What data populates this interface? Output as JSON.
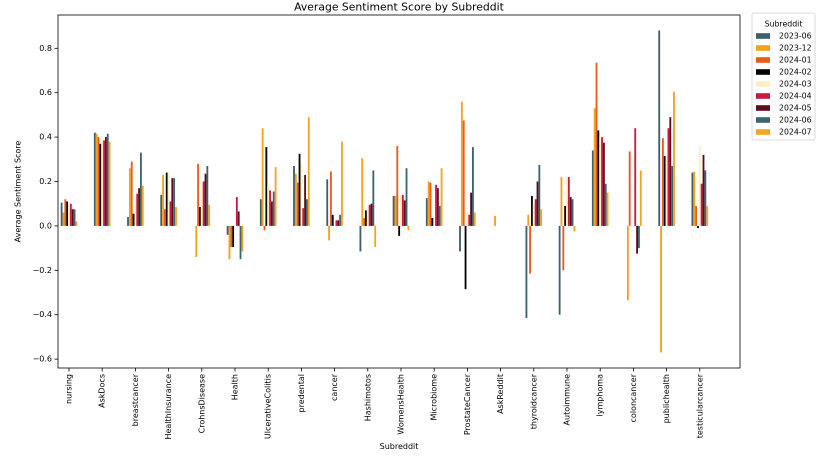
{
  "chart_data": {
    "type": "bar",
    "title": "Average Sentiment Score by Subreddit",
    "xlabel": "Subreddit",
    "ylabel": "Average Sentiment Score",
    "categories": [
      "nursing",
      "AskDocs",
      "breastcancer",
      "HealthInsurance",
      "CrohnsDisease",
      "Health",
      "UlcerativeColitis",
      "predental",
      "cancer",
      "Hashimotos",
      "WomensHealth",
      "Microbiome",
      "ProstateCancer",
      "AskReddit",
      "thyroidcancer",
      "Autoimmune",
      "lymphoma",
      "coloncancer",
      "publichealth",
      "testicularcancer"
    ],
    "series": [
      {
        "name": "2023-06",
        "color": "#3d5f6e",
        "values": [
          0.105,
          0.42,
          0.04,
          0.14,
          null,
          -0.04,
          0.12,
          0.27,
          0.21,
          -0.115,
          0.135,
          0.125,
          -0.115,
          null,
          -0.415,
          -0.4,
          0.34,
          null,
          0.88,
          0.24
        ]
      },
      {
        "name": "2023-12",
        "color": "#f7a11a",
        "values": [
          0.06,
          0.415,
          0.26,
          0.23,
          -0.14,
          -0.15,
          0.44,
          0.235,
          -0.065,
          0.305,
          0.135,
          0.2,
          0.56,
          0.045,
          0.05,
          0.22,
          0.53,
          -0.335,
          -0.57,
          0.245
        ]
      },
      {
        "name": "2024-01",
        "color": "#ea5a1b",
        "values": [
          0.12,
          0.4,
          0.29,
          0.075,
          0.28,
          -0.095,
          -0.02,
          0.195,
          0.245,
          0.035,
          0.36,
          0.195,
          0.475,
          null,
          -0.215,
          -0.2,
          0.735,
          0.335,
          0.395,
          0.09
        ]
      },
      {
        "name": "2024-02",
        "color": "#050505",
        "values": [
          0.11,
          0.37,
          0.055,
          0.24,
          0.085,
          -0.095,
          0.355,
          0.325,
          0.05,
          0.07,
          -0.045,
          0.035,
          -0.285,
          null,
          0.135,
          0.09,
          0.43,
          null,
          0.315,
          -0.01
        ]
      },
      {
        "name": "2024-03",
        "color": "#fcefc5",
        "values": [
          0.08,
          0.39,
          0.12,
          0.245,
          0.19,
          null,
          0.18,
          0.28,
          null,
          0.09,
          0.14,
          null,
          0.06,
          null,
          0.1,
          0.22,
          0.4,
          null,
          0.31,
          0.36
        ]
      },
      {
        "name": "2024-04",
        "color": "#c91a42",
        "values": [
          0.1,
          0.385,
          0.145,
          0.11,
          0.2,
          0.13,
          0.16,
          0.08,
          0.025,
          0.095,
          0.14,
          0.185,
          0.05,
          null,
          0.12,
          0.22,
          0.4,
          0.44,
          0.44,
          0.19
        ]
      },
      {
        "name": "2024-05",
        "color": "#5b0c1f",
        "values": [
          0.075,
          0.4,
          0.17,
          0.215,
          0.235,
          0.065,
          0.11,
          0.23,
          0.025,
          0.1,
          0.115,
          0.17,
          0.15,
          null,
          0.2,
          0.13,
          0.375,
          -0.125,
          0.49,
          0.32
        ]
      },
      {
        "name": "2024-06",
        "color": "#3b6573",
        "values": [
          0.075,
          0.415,
          0.33,
          0.215,
          0.27,
          -0.15,
          0.155,
          0.12,
          0.05,
          0.25,
          0.26,
          0.09,
          0.355,
          null,
          0.275,
          0.12,
          0.19,
          -0.1,
          0.27,
          0.25
        ]
      },
      {
        "name": "2024-07",
        "color": "#f5a422",
        "values": [
          0.02,
          0.38,
          0.18,
          0.085,
          0.095,
          -0.115,
          0.265,
          0.49,
          0.38,
          -0.095,
          -0.02,
          0.26,
          0.06,
          null,
          0.075,
          -0.025,
          0.15,
          0.25,
          0.605,
          0.09
        ]
      }
    ],
    "yticks": [
      -0.6,
      -0.4,
      -0.2,
      0.0,
      0.2,
      0.4,
      0.6,
      0.8
    ],
    "ytick_labels": [
      "−0.6",
      "−0.4",
      "−0.2",
      "0.0",
      "0.2",
      "0.4",
      "0.6",
      "0.8"
    ],
    "ylim": [
      -0.64,
      0.95
    ],
    "grid": false,
    "legend": {
      "title": "Subreddit",
      "placement": "outside-upper-right"
    }
  }
}
